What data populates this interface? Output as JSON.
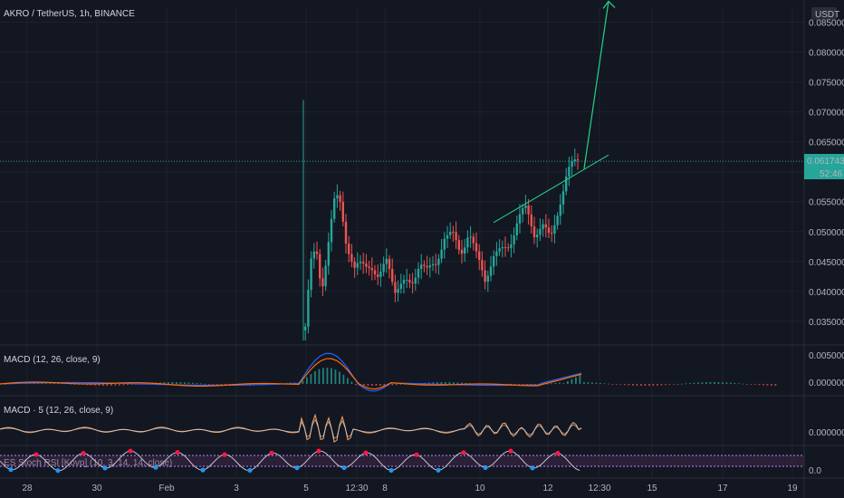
{
  "chart_data": {
    "type": "candlestick",
    "title": "AKRO / TetherUS, 1h, BINANCE",
    "currency": "USDT",
    "last_price": "0.061743",
    "countdown": "52:46",
    "x_ticks": [
      "28",
      "30",
      "Feb",
      "3",
      "5",
      "12:30",
      "8",
      "10",
      "12",
      "12:30",
      "15",
      "17",
      "19"
    ],
    "y_ticks": [
      "0.085000",
      "0.080000",
      "0.075000",
      "0.070000",
      "0.065000",
      "0.060000",
      "0.055000",
      "0.050000",
      "0.045000",
      "0.040000",
      "0.035000"
    ],
    "ylim": [
      0.0315,
      0.0875
    ],
    "series": [
      {
        "kind": "ohlc_approx",
        "points": [
          {
            "t": 0.0,
            "close": 0.0335
          },
          {
            "t": 0.02,
            "close": 0.044
          },
          {
            "t": 0.04,
            "close": 0.047
          },
          {
            "t": 0.06,
            "close": 0.041
          },
          {
            "t": 0.09,
            "close": 0.0505
          },
          {
            "t": 0.11,
            "close": 0.056
          },
          {
            "t": 0.13,
            "close": 0.0545
          },
          {
            "t": 0.15,
            "close": 0.048
          },
          {
            "t": 0.18,
            "close": 0.043
          },
          {
            "t": 0.21,
            "close": 0.0445
          },
          {
            "t": 0.24,
            "close": 0.0455
          },
          {
            "t": 0.27,
            "close": 0.042
          },
          {
            "t": 0.3,
            "close": 0.045
          },
          {
            "t": 0.33,
            "close": 0.04
          },
          {
            "t": 0.36,
            "close": 0.041
          },
          {
            "t": 0.39,
            "close": 0.0415
          },
          {
            "t": 0.42,
            "close": 0.046
          },
          {
            "t": 0.45,
            "close": 0.043
          },
          {
            "t": 0.48,
            "close": 0.044
          },
          {
            "t": 0.51,
            "close": 0.049
          },
          {
            "t": 0.54,
            "close": 0.0495
          },
          {
            "t": 0.57,
            "close": 0.047
          },
          {
            "t": 0.6,
            "close": 0.0505
          },
          {
            "t": 0.63,
            "close": 0.045
          },
          {
            "t": 0.66,
            "close": 0.0415
          },
          {
            "t": 0.69,
            "close": 0.046
          },
          {
            "t": 0.72,
            "close": 0.047
          },
          {
            "t": 0.75,
            "close": 0.0485
          },
          {
            "t": 0.78,
            "close": 0.052
          },
          {
            "t": 0.81,
            "close": 0.053
          },
          {
            "t": 0.84,
            "close": 0.0495
          },
          {
            "t": 0.87,
            "close": 0.0515
          },
          {
            "t": 0.9,
            "close": 0.049
          },
          {
            "t": 0.93,
            "close": 0.0545
          },
          {
            "t": 0.96,
            "close": 0.059
          },
          {
            "t": 1.0,
            "close": 0.0617
          }
        ]
      }
    ],
    "annotations": {
      "trendline_start_price": 0.0515,
      "trendline_end_price": 0.0628,
      "arrow_start_price": 0.0605,
      "arrow_end_price": 0.0885
    },
    "indicators": [
      {
        "name": "MACD (12, 26, close, 9)",
        "y_ticks": [
          "0.005000",
          "0.000000"
        ]
      },
      {
        "name": "MACD · 5 (12, 26, close, 9)",
        "y_ticks": [
          "0.000000"
        ]
      },
      {
        "name": "ES Stoch RSI [Kovp] (10, 3, 14, 14, close)",
        "y_ticks": [
          "0.0"
        ]
      }
    ]
  }
}
